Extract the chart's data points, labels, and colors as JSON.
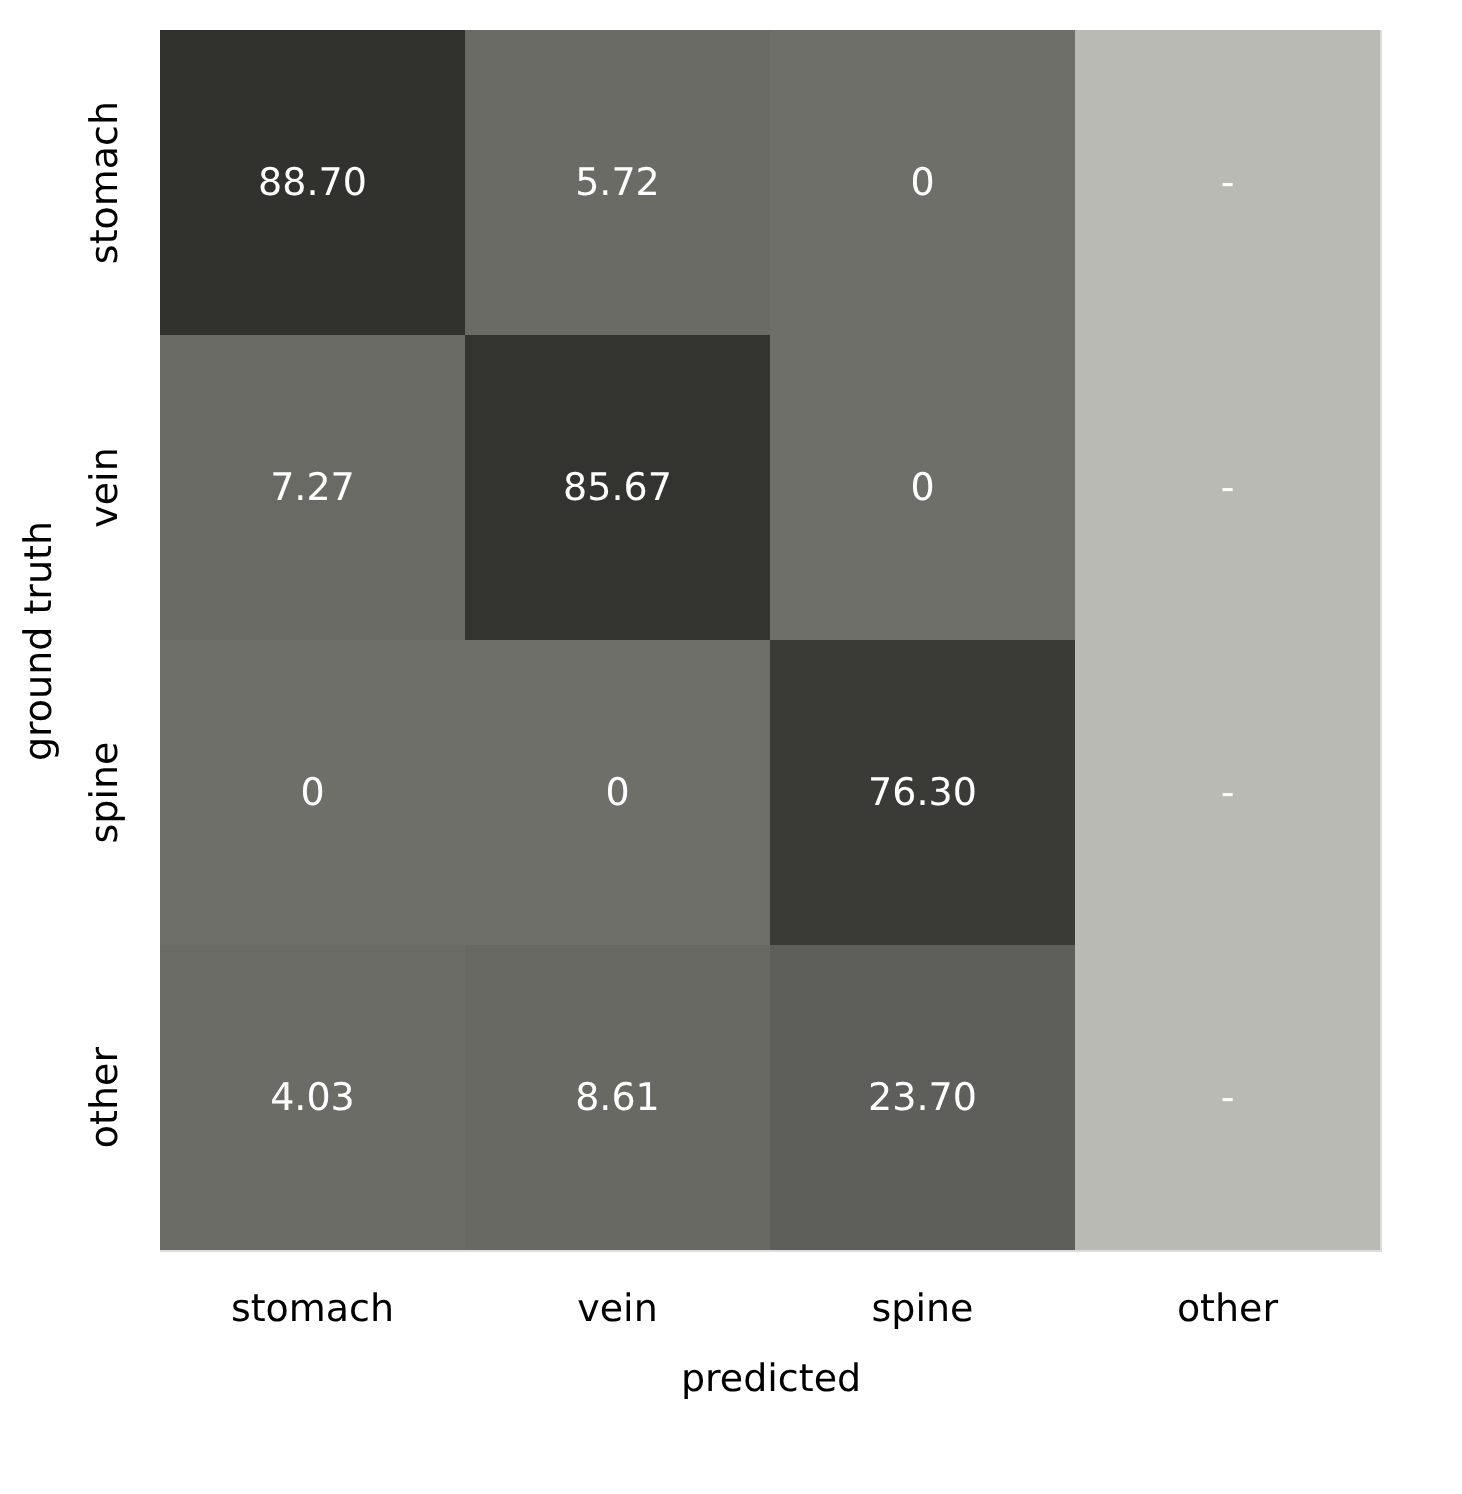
{
  "chart_data": {
    "type": "heatmap",
    "xlabel": "predicted",
    "ylabel": "ground truth",
    "categories": [
      "stomach",
      "vein",
      "spine",
      "other"
    ],
    "y_categories": [
      "stomach",
      "vein",
      "spine",
      "other"
    ],
    "cells": [
      [
        88.7,
        5.72,
        0,
        null
      ],
      [
        7.27,
        85.67,
        0,
        null
      ],
      [
        0,
        0,
        76.3,
        null
      ],
      [
        4.03,
        8.61,
        23.7,
        null
      ]
    ],
    "cell_labels": [
      [
        "88.70",
        "5.72",
        "0",
        "-"
      ],
      [
        "7.27",
        "85.67",
        "0",
        "-"
      ],
      [
        "0",
        "0",
        "76.30",
        "-"
      ],
      [
        "4.03",
        "8.61",
        "23.70",
        "-"
      ]
    ],
    "colors": [
      "#6f6f6a",
      "#31322d",
      "#babab5"
    ]
  }
}
